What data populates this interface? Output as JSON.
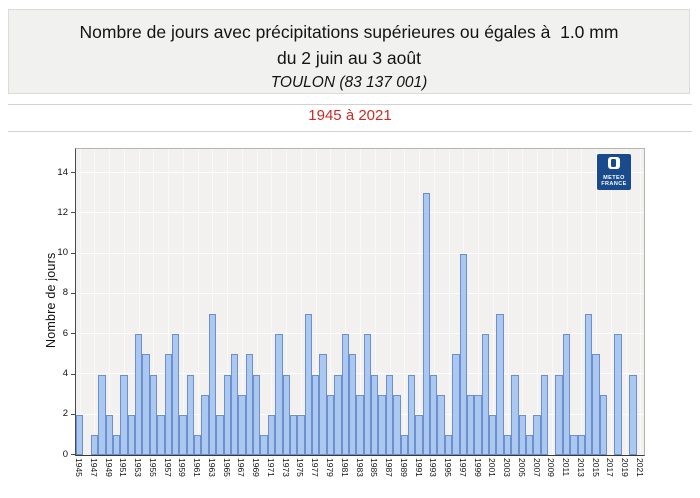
{
  "header": {
    "title_line1": "Nombre de jours avec précipitations supérieures ou égales à  1.0 mm",
    "title_line2": "du 2 juin au 3 août",
    "station": "TOULON (83 137 001)"
  },
  "period": {
    "label": "1945 à 2021",
    "color": "#cb2b27"
  },
  "logo": {
    "name": "meteo-france",
    "line1": "METEO",
    "line2": "FRANCE",
    "bg_color": "#184a8c"
  },
  "chart_data": {
    "type": "bar",
    "title": "Nombre de jours avec précipitations supérieures ou égales à 1.0 mm du 2 juin au 3 août",
    "subtitle": "1945 à 2021",
    "station": "TOULON (83 137 001)",
    "xlabel": "",
    "ylabel": "Nombre de jours",
    "ylim": [
      0,
      15.2
    ],
    "yticks": [
      0,
      2,
      4,
      6,
      8,
      10,
      12,
      14
    ],
    "grid": true,
    "legend": false,
    "bar_fill": "#abc9f0",
    "bar_border": "#6e8fcd",
    "categories": [
      1945,
      1946,
      1947,
      1948,
      1949,
      1950,
      1951,
      1952,
      1953,
      1954,
      1955,
      1956,
      1957,
      1958,
      1959,
      1960,
      1961,
      1962,
      1963,
      1964,
      1965,
      1966,
      1967,
      1968,
      1969,
      1970,
      1971,
      1972,
      1973,
      1974,
      1975,
      1976,
      1977,
      1978,
      1979,
      1980,
      1981,
      1982,
      1983,
      1984,
      1985,
      1986,
      1987,
      1988,
      1989,
      1990,
      1991,
      1992,
      1993,
      1994,
      1995,
      1996,
      1997,
      1998,
      1999,
      2000,
      2001,
      2002,
      2003,
      2004,
      2005,
      2006,
      2007,
      2008,
      2009,
      2010,
      2011,
      2012,
      2013,
      2014,
      2015,
      2016,
      2017,
      2018,
      2019,
      2020,
      2021
    ],
    "values": [
      2,
      0,
      1,
      4,
      2,
      1,
      4,
      2,
      6,
      5,
      4,
      2,
      5,
      6,
      2,
      4,
      1,
      3,
      7,
      2,
      4,
      5,
      3,
      5,
      4,
      1,
      2,
      6,
      4,
      2,
      2,
      7,
      4,
      5,
      3,
      4,
      6,
      5,
      3,
      6,
      4,
      3,
      4,
      3,
      1,
      4,
      2,
      13,
      4,
      3,
      1,
      5,
      10,
      3,
      3,
      6,
      2,
      7,
      1,
      4,
      2,
      1,
      2,
      4,
      0,
      4,
      6,
      1,
      1,
      7,
      5,
      3,
      0,
      6,
      0,
      4,
      0
    ],
    "xtick_labels": [
      1945,
      1947,
      1949,
      1951,
      1953,
      1955,
      1957,
      1959,
      1961,
      1963,
      1965,
      1967,
      1969,
      1971,
      1973,
      1975,
      1977,
      1979,
      1981,
      1983,
      1985,
      1987,
      1989,
      1991,
      1993,
      1995,
      1997,
      1999,
      2001,
      2003,
      2005,
      2007,
      2009,
      2011,
      2013,
      2015,
      2017,
      2019,
      2021
    ]
  }
}
